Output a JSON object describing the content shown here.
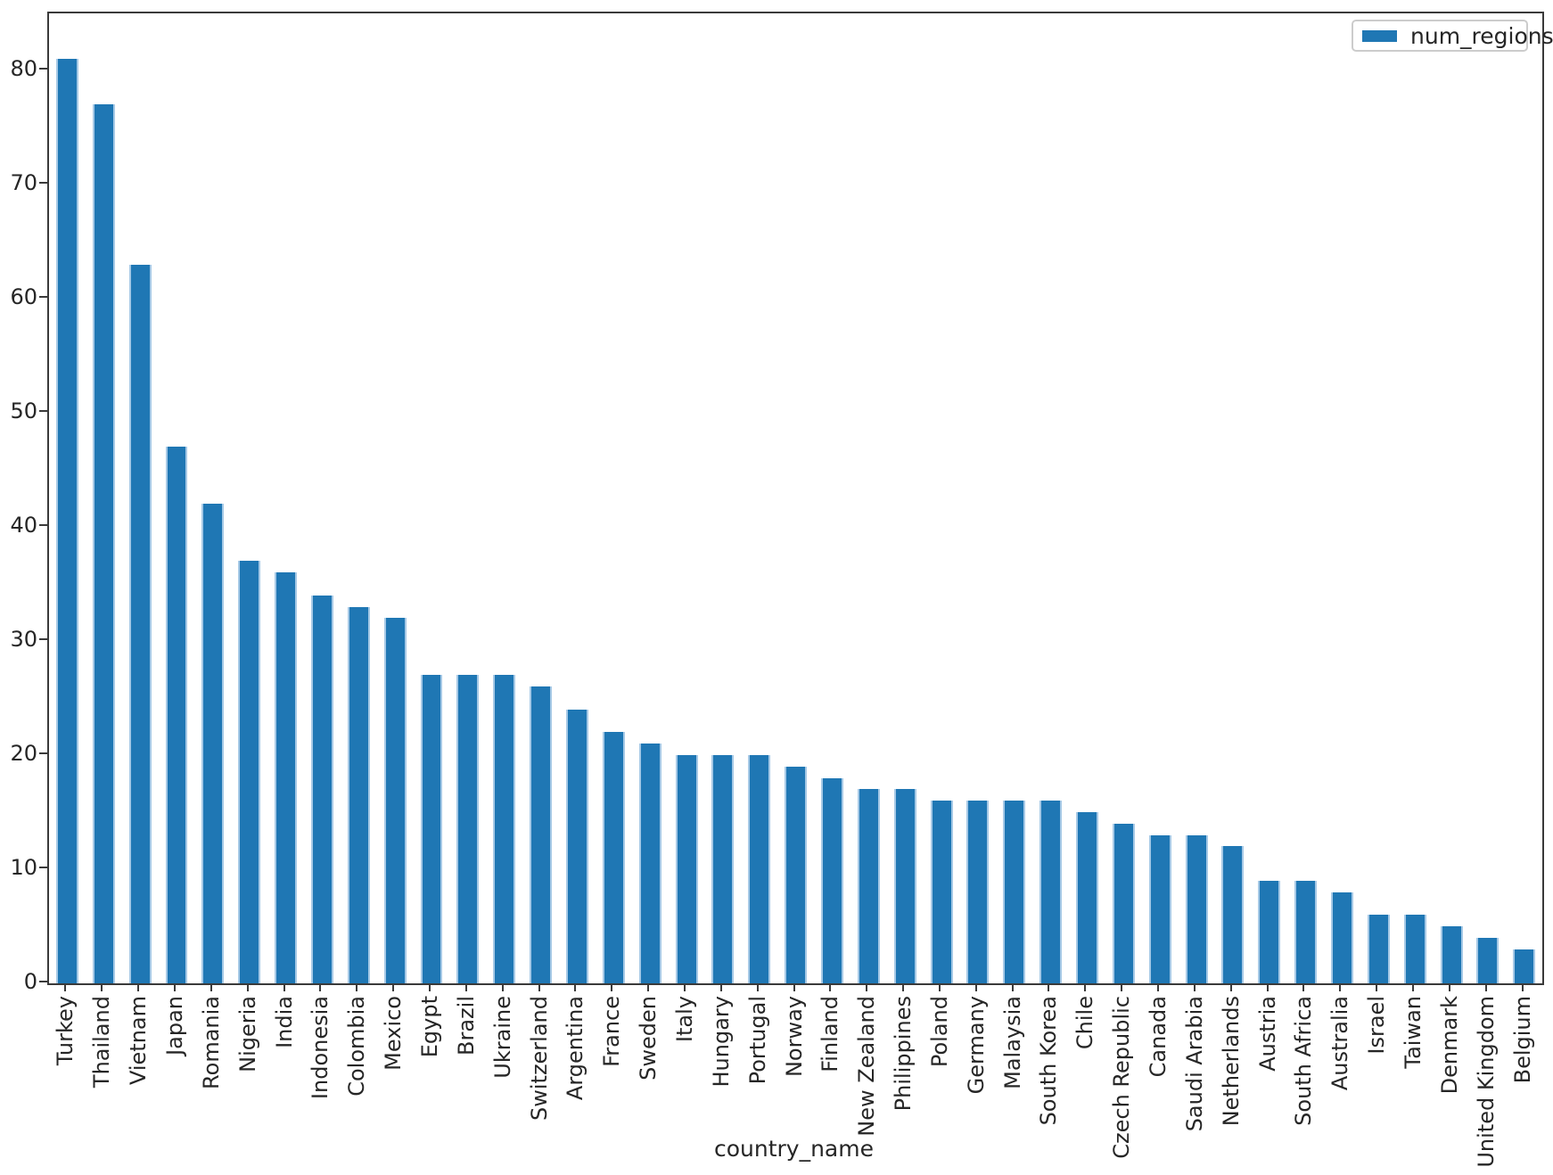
{
  "chart_data": {
    "type": "bar",
    "title": "",
    "xlabel": "country_name",
    "ylabel": "",
    "series_name": "num_regions",
    "legend_position": "upper right",
    "grid": false,
    "ylim": [
      0,
      85
    ],
    "yticks": [
      0,
      10,
      20,
      30,
      40,
      50,
      60,
      70,
      80
    ],
    "bar_color": "#1f77b4",
    "bar_edge_color": "#a6c9e6",
    "categories": [
      "Turkey",
      "Thailand",
      "Vietnam",
      "Japan",
      "Romania",
      "Nigeria",
      "India",
      "Indonesia",
      "Colombia",
      "Mexico",
      "Egypt",
      "Brazil",
      "Ukraine",
      "Switzerland",
      "Argentina",
      "France",
      "Sweden",
      "Italy",
      "Hungary",
      "Portugal",
      "Norway",
      "Finland",
      "New Zealand",
      "Philippines",
      "Poland",
      "Germany",
      "Malaysia",
      "South Korea",
      "Chile",
      "Czech Republic",
      "Canada",
      "Saudi Arabia",
      "Netherlands",
      "Austria",
      "South Africa",
      "Australia",
      "Israel",
      "Taiwan",
      "Denmark",
      "United Kingdom",
      "Belgium"
    ],
    "values": [
      81,
      77,
      63,
      47,
      42,
      37,
      36,
      34,
      33,
      32,
      27,
      27,
      27,
      26,
      24,
      22,
      21,
      20,
      20,
      20,
      19,
      18,
      17,
      17,
      16,
      16,
      16,
      16,
      15,
      14,
      13,
      13,
      12,
      9,
      9,
      8,
      6,
      6,
      5,
      4,
      3
    ]
  }
}
